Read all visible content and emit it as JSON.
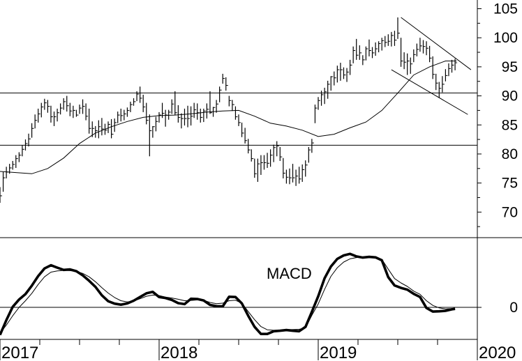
{
  "chart_data": [
    {
      "type": "ohlc",
      "panel": "price",
      "yticks": [
        "105",
        "100",
        "95",
        "90",
        "85",
        "80",
        "75",
        "70"
      ],
      "ylim": [
        65.6,
        106.5
      ],
      "xlim": [
        2017.0,
        2020.0
      ],
      "support_resistance": [
        90.5,
        81.5
      ],
      "channel_lines": [
        {
          "x": [
            2019.52,
            2019.96
          ],
          "y": [
            103.5,
            94.5
          ]
        },
        {
          "x": [
            2019.46,
            2019.94
          ],
          "y": [
            94.5,
            86.8
          ]
        }
      ],
      "moving_average": {
        "x": [
          2017.0,
          2017.1,
          2017.2,
          2017.3,
          2017.4,
          2017.5,
          2017.6,
          2017.7,
          2017.8,
          2017.9,
          2018.0,
          2018.1,
          2018.2,
          2018.3,
          2018.4,
          2018.5,
          2018.6,
          2018.7,
          2018.8,
          2018.9,
          2019.0,
          2019.1,
          2019.2,
          2019.3,
          2019.4,
          2019.5,
          2019.6,
          2019.7,
          2019.8,
          2019.87
        ],
        "y": [
          77,
          76.8,
          76.6,
          77.5,
          79.3,
          81.8,
          83.6,
          84.7,
          85.6,
          86.3,
          86.6,
          86.7,
          86.9,
          87.2,
          87.4,
          87.5,
          86.5,
          85.3,
          84.8,
          84.1,
          83,
          83.4,
          84.5,
          85.5,
          87.5,
          90.5,
          93.6,
          95,
          96,
          96
        ]
      },
      "ohlc": {
        "x": [
          2017.0,
          2017.02,
          2017.04,
          2017.06,
          2017.08,
          2017.1,
          2017.12,
          2017.14,
          2017.16,
          2017.18,
          2017.2,
          2017.22,
          2017.24,
          2017.26,
          2017.28,
          2017.3,
          2017.32,
          2017.34,
          2017.36,
          2017.38,
          2017.4,
          2017.42,
          2017.44,
          2017.46,
          2017.48,
          2017.5,
          2017.52,
          2017.54,
          2017.56,
          2017.58,
          2017.6,
          2017.62,
          2017.64,
          2017.66,
          2017.68,
          2017.7,
          2017.72,
          2017.74,
          2017.76,
          2017.78,
          2017.8,
          2017.82,
          2017.84,
          2017.86,
          2017.88,
          2017.9,
          2017.92,
          2017.94,
          2017.96,
          2017.98,
          2018.0,
          2018.02,
          2018.04,
          2018.06,
          2018.08,
          2018.1,
          2018.12,
          2018.14,
          2018.16,
          2018.18,
          2018.2,
          2018.22,
          2018.24,
          2018.26,
          2018.28,
          2018.3,
          2018.32,
          2018.34,
          2018.36,
          2018.38,
          2018.4,
          2018.42,
          2018.44,
          2018.46,
          2018.48,
          2018.5,
          2018.52,
          2018.54,
          2018.56,
          2018.58,
          2018.6,
          2018.62,
          2018.64,
          2018.66,
          2018.68,
          2018.7,
          2018.72,
          2018.74,
          2018.76,
          2018.78,
          2018.8,
          2018.82,
          2018.84,
          2018.86,
          2018.88,
          2018.9,
          2018.92,
          2018.94,
          2018.96,
          2018.98,
          2019.0,
          2019.02,
          2019.04,
          2019.06,
          2019.08,
          2019.1,
          2019.12,
          2019.14,
          2019.16,
          2019.18,
          2019.2,
          2019.22,
          2019.24,
          2019.26,
          2019.28,
          2019.3,
          2019.32,
          2019.34,
          2019.36,
          2019.38,
          2019.4,
          2019.42,
          2019.44,
          2019.46,
          2019.48,
          2019.5,
          2019.52,
          2019.54,
          2019.56,
          2019.58,
          2019.6,
          2019.62,
          2019.64,
          2019.66,
          2019.68,
          2019.7,
          2019.72,
          2019.74,
          2019.76,
          2019.78,
          2019.8,
          2019.82,
          2019.84,
          2019.86
        ],
        "high": [
          74.3,
          76.9,
          77.8,
          78.3,
          78.8,
          79.8,
          80.3,
          81.5,
          82.5,
          83.5,
          85.3,
          86.8,
          87.8,
          88.8,
          89.5,
          89.3,
          88.3,
          87.3,
          87.8,
          88.7,
          89.6,
          90,
          88.8,
          88.3,
          87.6,
          88.5,
          89.4,
          88.7,
          87.8,
          85.6,
          84.8,
          85.8,
          86.2,
          85.2,
          85.6,
          86,
          86.1,
          87.3,
          87.8,
          87.6,
          88,
          89,
          89.6,
          90.8,
          91.6,
          90.2,
          88.8,
          86.8,
          84.8,
          86.4,
          87.2,
          88.8,
          87.6,
          87.6,
          89.4,
          90.8,
          88.4,
          87,
          87.8,
          88.3,
          88.2,
          88.8,
          88.7,
          87.8,
          87.8,
          88.7,
          90.8,
          88.1,
          89.3,
          91.6,
          93.8,
          93.2,
          90,
          89.3,
          88.2,
          86.8,
          85.4,
          84.5,
          82.6,
          80.8,
          79.2,
          79.2,
          79.8,
          79.8,
          80.2,
          80.8,
          81.6,
          82.2,
          81.2,
          79.3,
          77.3,
          77.5,
          78.3,
          77.3,
          77.8,
          78.2,
          78.9,
          81.2,
          82.6,
          88.5,
          89.8,
          90.9,
          91.4,
          92.6,
          93.4,
          94.2,
          95.2,
          95.7,
          94.9,
          94.8,
          96.2,
          98.5,
          99.8,
          98.7,
          97,
          98.5,
          99.7,
          98.4,
          99.2,
          99.4,
          100,
          100.3,
          100.6,
          101,
          101.2,
          103.5,
          100,
          97.5,
          97.3,
          96.6,
          98,
          99,
          100,
          99.6,
          99.4,
          98.6,
          96.8,
          93.8,
          92.4,
          93.4,
          94.6,
          95.6,
          96.2,
          96.4
        ],
        "low": [
          71.6,
          73.5,
          75.8,
          76.6,
          77.3,
          77.6,
          78.6,
          79.6,
          80.6,
          81.3,
          82.8,
          84.4,
          85.4,
          86.3,
          87.6,
          87.1,
          85.4,
          84.8,
          85.6,
          86.8,
          87.6,
          87.3,
          86.5,
          86.2,
          86.4,
          86.9,
          86.9,
          85.8,
          83.5,
          82.9,
          82.8,
          82.7,
          83.2,
          83.3,
          83.6,
          82.7,
          83.8,
          85.3,
          85.6,
          85.8,
          86.4,
          87.2,
          88.3,
          89.1,
          88.8,
          87.2,
          85.1,
          79.6,
          82.8,
          83.9,
          85.4,
          86.2,
          84.7,
          85.9,
          86.9,
          86.7,
          85.4,
          84.4,
          84.9,
          84.6,
          84.9,
          86.2,
          85.9,
          85.4,
          85.5,
          86.1,
          86.9,
          86.4,
          87.1,
          88.9,
          92.1,
          90.9,
          88.2,
          87.4,
          85.9,
          84.8,
          82.9,
          81.8,
          80.1,
          78.7,
          75.9,
          75.2,
          76.4,
          77.3,
          77.6,
          77.8,
          78.6,
          79.6,
          78.8,
          75.8,
          74.9,
          74.8,
          75.1,
          74.5,
          74.9,
          75.2,
          76.1,
          78.5,
          80.2,
          85.3,
          87.6,
          88.3,
          88.6,
          89.5,
          90.9,
          91.8,
          92.3,
          92.6,
          92.9,
          92.4,
          93.6,
          95.6,
          96.2,
          96.2,
          95.3,
          96.1,
          96.8,
          96.5,
          96.9,
          97.5,
          97.8,
          98.4,
          98.6,
          98.5,
          98.6,
          99.8,
          95,
          94.6,
          93.6,
          93.8,
          95.8,
          96.8,
          97.6,
          97.3,
          97,
          95.8,
          92.9,
          91,
          89.7,
          90.6,
          92.5,
          93.4,
          94,
          94.4
        ],
        "close": [
          72.8,
          75.9,
          76.9,
          77.6,
          78.2,
          79.2,
          79.8,
          80.8,
          81.8,
          82.6,
          84.4,
          85.8,
          86.9,
          88.1,
          88.8,
          88.2,
          86.4,
          86.4,
          87.1,
          87.9,
          89,
          88.3,
          87.4,
          87.5,
          86.7,
          87.9,
          88.2,
          86.5,
          84.4,
          84.4,
          84,
          84.7,
          84.3,
          84.1,
          85.1,
          83.4,
          85.4,
          86.7,
          86.6,
          86.9,
          87.5,
          88.5,
          89,
          90.3,
          89.6,
          88.1,
          85.8,
          84,
          84.7,
          85.6,
          86.7,
          87,
          86.7,
          87.2,
          88.6,
          87.1,
          86.3,
          86.1,
          86.1,
          86.1,
          86.5,
          87.6,
          87.1,
          86.3,
          87.4,
          87.7,
          87.1,
          88,
          88.6,
          91,
          93,
          91.8,
          89.2,
          88.5,
          86.4,
          85.4,
          83.6,
          82.3,
          80.7,
          79.2,
          76.6,
          78.3,
          78.5,
          78.5,
          78.4,
          79.8,
          81.1,
          81.4,
          79.5,
          76.7,
          76,
          75.9,
          75.9,
          76.2,
          75.7,
          77.3,
          78.1,
          80.7,
          81.9,
          87.9,
          89.2,
          90.2,
          90.7,
          92,
          93.3,
          93.1,
          94.5,
          94.5,
          93.6,
          94.1,
          95.3,
          97.8,
          97,
          97.4,
          96.2,
          98.1,
          97.8,
          97.4,
          98.1,
          99,
          99.5,
          99.2,
          99.4,
          100.4,
          99.6,
          100.8,
          96,
          95.8,
          96,
          95.5,
          97.1,
          98,
          98.6,
          98.5,
          98.2,
          96.5,
          93.7,
          92.2,
          91.3,
          92,
          93.5,
          94.7,
          95.3,
          95.7
        ]
      }
    },
    {
      "type": "line",
      "panel": "indicator",
      "annotation": "MACD",
      "yticks": [
        "0"
      ],
      "ylim": [
        -1.3,
        2.83
      ],
      "hline": 0,
      "series": [
        {
          "role": "macd",
          "x": [
            2017.0,
            2017.04,
            2017.08,
            2017.12,
            2017.16,
            2017.2,
            2017.24,
            2017.28,
            2017.32,
            2017.36,
            2017.4,
            2017.44,
            2017.48,
            2017.52,
            2017.56,
            2017.6,
            2017.64,
            2017.68,
            2017.72,
            2017.76,
            2017.8,
            2017.84,
            2017.88,
            2017.92,
            2017.96,
            2018.0,
            2018.04,
            2018.08,
            2018.12,
            2018.16,
            2018.2,
            2018.24,
            2018.28,
            2018.32,
            2018.36,
            2018.4,
            2018.44,
            2018.48,
            2018.52,
            2018.56,
            2018.6,
            2018.64,
            2018.68,
            2018.72,
            2018.76,
            2018.8,
            2018.84,
            2018.88,
            2018.92,
            2018.96,
            2019.0,
            2019.04,
            2019.08,
            2019.12,
            2019.16,
            2019.2,
            2019.24,
            2019.28,
            2019.32,
            2019.36,
            2019.4,
            2019.44,
            2019.48,
            2019.52,
            2019.56,
            2019.6,
            2019.64,
            2019.68,
            2019.72,
            2019.76,
            2019.8,
            2019.84,
            2019.86
          ],
          "y": [
            -1.12,
            -0.52,
            0.02,
            0.32,
            0.54,
            0.88,
            1.27,
            1.58,
            1.71,
            1.61,
            1.52,
            1.54,
            1.47,
            1.3,
            1.08,
            0.83,
            0.49,
            0.25,
            0.15,
            0.11,
            0.16,
            0.27,
            0.42,
            0.57,
            0.63,
            0.42,
            0.38,
            0.3,
            0.17,
            0.13,
            0.35,
            0.34,
            0.28,
            0.1,
            0.05,
            0.04,
            0.43,
            0.42,
            0.16,
            -0.34,
            -0.79,
            -1.08,
            -1.08,
            -0.97,
            -0.95,
            -0.92,
            -0.95,
            -0.97,
            -0.79,
            -0.18,
            0.45,
            1.18,
            1.66,
            1.97,
            2.11,
            2.17,
            2.07,
            2.02,
            2.05,
            2.03,
            1.91,
            1.23,
            0.89,
            0.79,
            0.72,
            0.55,
            0.42,
            -0.02,
            -0.17,
            -0.16,
            -0.14,
            -0.08,
            -0.06
          ]
        },
        {
          "role": "signal",
          "x": [
            2017.0,
            2017.04,
            2017.08,
            2017.12,
            2017.16,
            2017.2,
            2017.24,
            2017.28,
            2017.32,
            2017.36,
            2017.4,
            2017.44,
            2017.48,
            2017.52,
            2017.56,
            2017.6,
            2017.64,
            2017.68,
            2017.72,
            2017.76,
            2017.8,
            2017.84,
            2017.88,
            2017.92,
            2017.96,
            2018.0,
            2018.04,
            2018.08,
            2018.12,
            2018.16,
            2018.2,
            2018.24,
            2018.28,
            2018.32,
            2018.36,
            2018.4,
            2018.44,
            2018.48,
            2018.52,
            2018.56,
            2018.6,
            2018.64,
            2018.68,
            2018.72,
            2018.76,
            2018.8,
            2018.84,
            2018.88,
            2018.92,
            2018.96,
            2019.0,
            2019.04,
            2019.08,
            2019.12,
            2019.16,
            2019.2,
            2019.24,
            2019.28,
            2019.32,
            2019.36,
            2019.4,
            2019.44,
            2019.48,
            2019.52,
            2019.56,
            2019.6,
            2019.64,
            2019.68,
            2019.72,
            2019.76,
            2019.8,
            2019.84,
            2019.86
          ],
          "y": [
            -1.05,
            -0.72,
            -0.34,
            0.0,
            0.27,
            0.57,
            0.93,
            1.24,
            1.43,
            1.48,
            1.5,
            1.49,
            1.46,
            1.38,
            1.24,
            1.04,
            0.8,
            0.58,
            0.4,
            0.27,
            0.22,
            0.26,
            0.35,
            0.45,
            0.5,
            0.48,
            0.42,
            0.38,
            0.33,
            0.27,
            0.28,
            0.3,
            0.29,
            0.2,
            0.15,
            0.17,
            0.27,
            0.29,
            0.17,
            -0.17,
            -0.5,
            -0.78,
            -0.91,
            -0.93,
            -0.92,
            -0.9,
            -0.9,
            -0.89,
            -0.83,
            -0.32,
            0.14,
            0.73,
            1.26,
            1.61,
            1.84,
            1.97,
            2.02,
            2.04,
            2.04,
            2.04,
            1.95,
            1.55,
            1.17,
            0.99,
            0.85,
            0.66,
            0.53,
            0.27,
            0.08,
            -0.02,
            -0.06,
            -0.05,
            -0.05
          ]
        }
      ]
    }
  ],
  "x_axis": {
    "ticks": [
      2017,
      2018,
      2019,
      2020
    ],
    "labels": [
      "2017",
      "2018",
      "2019",
      "2020"
    ]
  },
  "colors": {
    "background": "#ffffff",
    "ink": "#000000"
  }
}
